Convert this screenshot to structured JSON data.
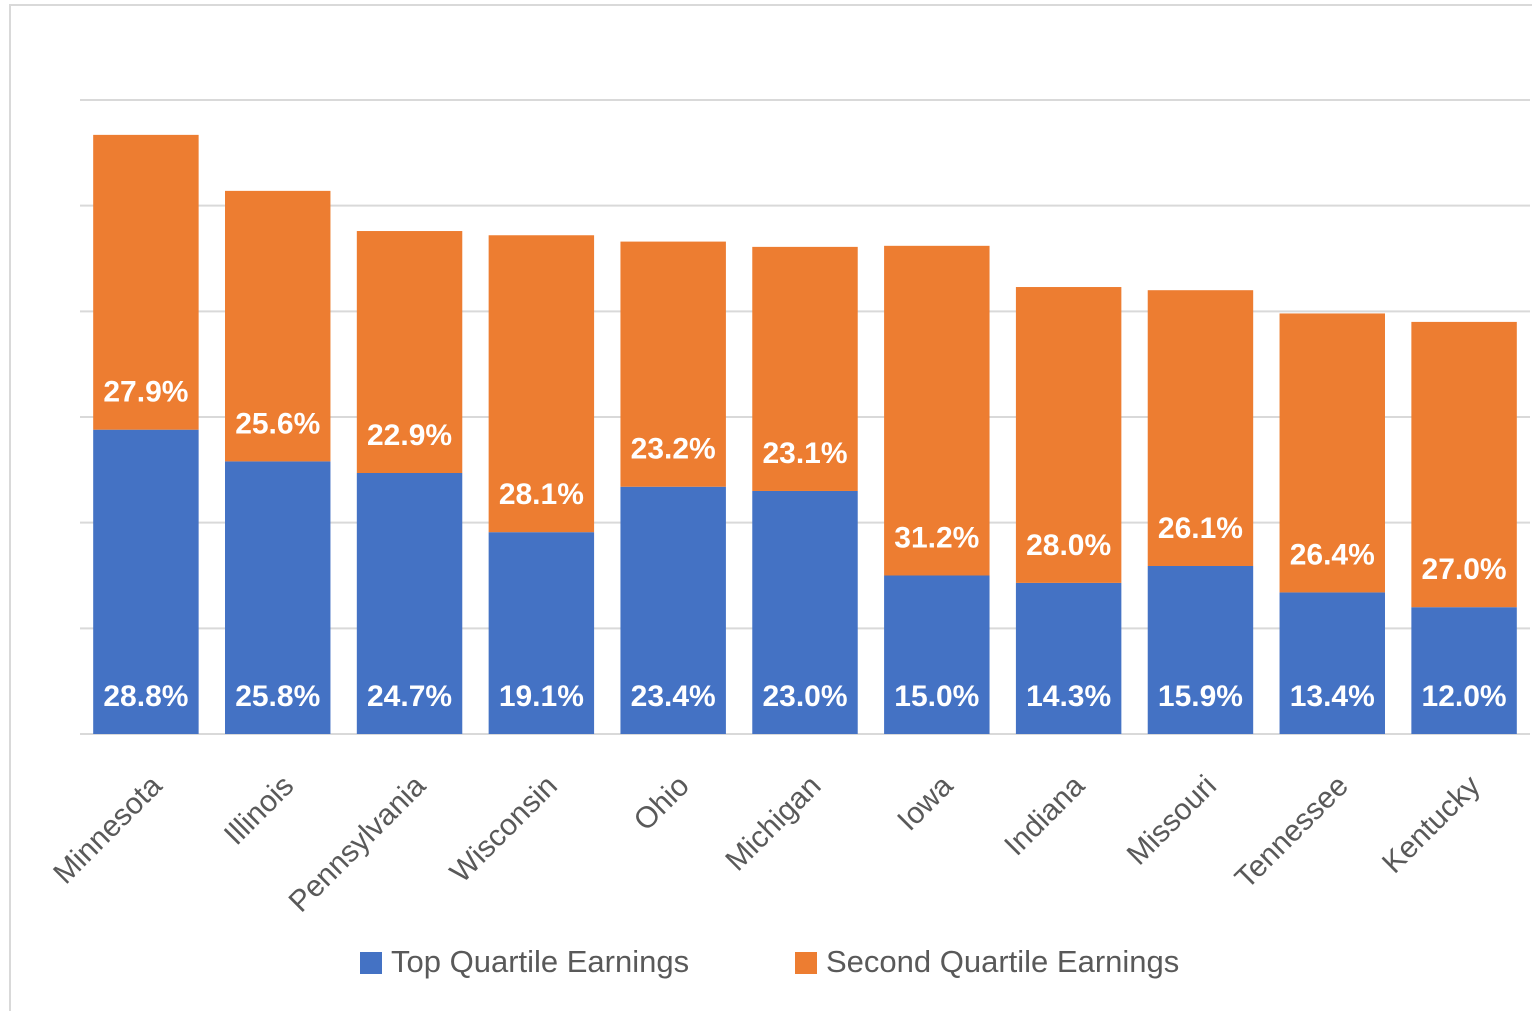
{
  "chart_data": {
    "type": "stacked_bar",
    "categories": [
      "Minnesota",
      "Illinois",
      "Pennsylvania",
      "Wisconsin",
      "Ohio",
      "Michigan",
      "Iowa",
      "Indiana",
      "Missouri",
      "Tennessee",
      "Kentucky"
    ],
    "series": [
      {
        "name": "Top Quartile Earnings",
        "color": "#4472c4",
        "values": [
          28.8,
          25.8,
          24.7,
          19.1,
          23.4,
          23.0,
          15.0,
          14.3,
          15.9,
          13.4,
          12.0
        ],
        "value_labels": [
          "28.8%",
          "25.8%",
          "24.7%",
          "19.1%",
          "23.4%",
          "23.0%",
          "15.0%",
          "14.3%",
          "15.9%",
          "13.4%",
          "12.0%"
        ]
      },
      {
        "name": "Second Quartile Earnings",
        "color": "#ed7d31",
        "values": [
          27.9,
          25.6,
          22.9,
          28.1,
          23.2,
          23.1,
          31.2,
          28.0,
          26.1,
          26.4,
          27.0
        ],
        "value_labels": [
          "27.9%",
          "25.6%",
          "22.9%",
          "28.1%",
          "23.2%",
          "23.1%",
          "31.2%",
          "28.0%",
          "26.1%",
          "26.4%",
          "27.0%"
        ]
      }
    ],
    "ylim": [
      0,
      60
    ],
    "yticks": [
      0,
      10,
      20,
      30,
      40,
      50,
      60
    ],
    "grid": true,
    "legend": "bottom"
  }
}
